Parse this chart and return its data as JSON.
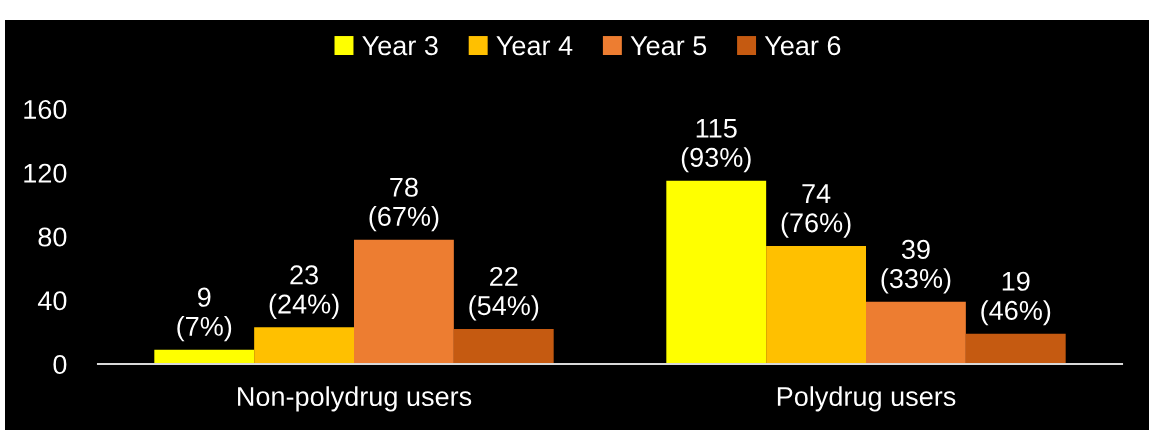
{
  "chart_data": {
    "type": "bar",
    "categories": [
      "Non-polydrug users",
      "Polydrug users"
    ],
    "series": [
      {
        "name": "Year 3",
        "color": "#ffff00",
        "values": [
          9,
          115
        ],
        "value_labels": [
          "9\n(7%)",
          "115\n(93%)"
        ]
      },
      {
        "name": "Year 4",
        "color": "#ffc000",
        "values": [
          23,
          74
        ],
        "value_labels": [
          "23\n(24%)",
          "74\n(76%)"
        ]
      },
      {
        "name": "Year 5",
        "color": "#ed7d31",
        "values": [
          78,
          39
        ],
        "value_labels": [
          "78\n(67%)",
          "39\n(33%)"
        ]
      },
      {
        "name": "Year 6",
        "color": "#c55a11",
        "values": [
          22,
          19
        ],
        "value_labels": [
          "22\n(54%)",
          "19\n(46%)"
        ]
      }
    ],
    "ylim": [
      0,
      160
    ],
    "yticks": [
      0,
      40,
      80,
      120,
      160
    ],
    "grid": false,
    "legend": "top"
  }
}
